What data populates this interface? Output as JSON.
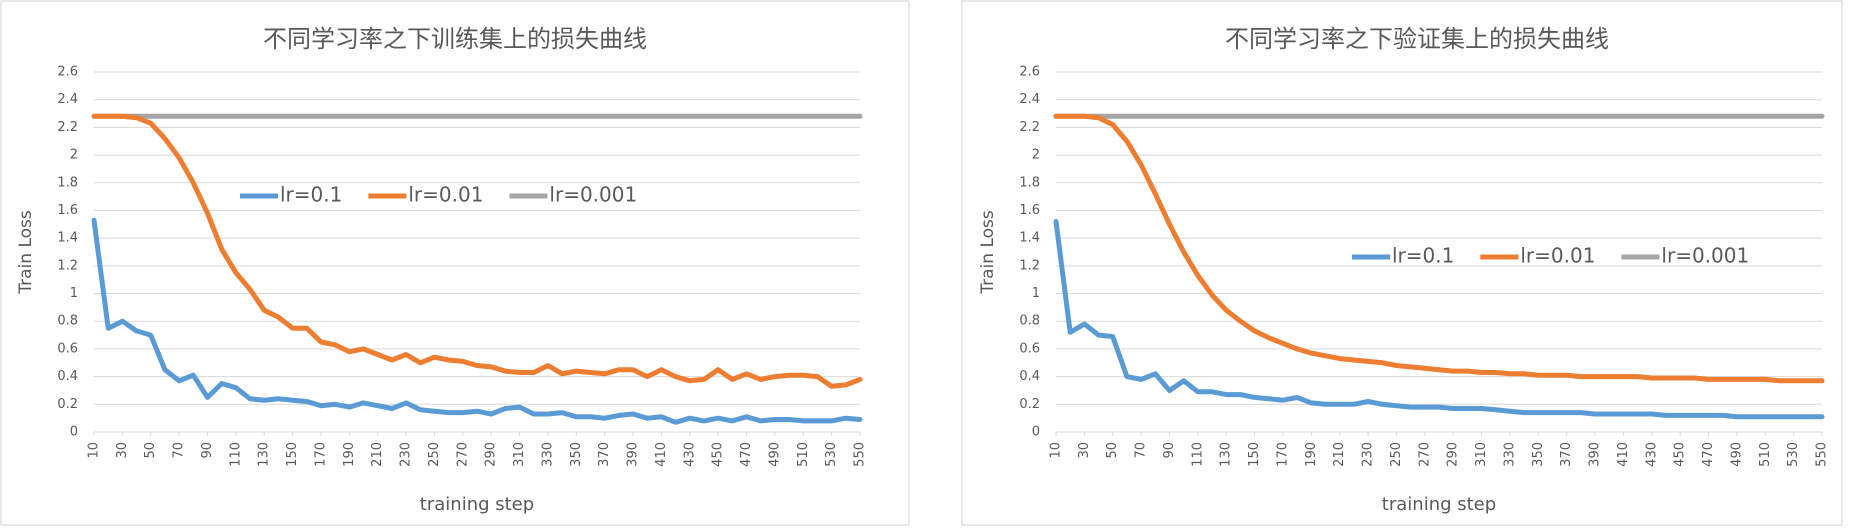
{
  "chart_data": [
    {
      "type": "line",
      "title": "不同学习率之下训练集上的损失曲线",
      "x_label": "training step",
      "y_label": "Train Loss",
      "x": [
        10,
        20,
        30,
        40,
        50,
        60,
        70,
        80,
        90,
        100,
        110,
        120,
        130,
        140,
        150,
        160,
        170,
        180,
        190,
        200,
        210,
        220,
        230,
        240,
        250,
        260,
        270,
        280,
        290,
        300,
        310,
        320,
        330,
        340,
        350,
        360,
        370,
        380,
        390,
        400,
        410,
        420,
        430,
        440,
        450,
        460,
        470,
        480,
        490,
        500,
        510,
        520,
        530,
        540,
        550
      ],
      "xlim": [
        10,
        550
      ],
      "xticks": [
        10,
        30,
        50,
        70,
        90,
        110,
        130,
        150,
        170,
        190,
        210,
        230,
        250,
        270,
        290,
        310,
        330,
        350,
        370,
        390,
        410,
        430,
        450,
        470,
        490,
        510,
        530,
        550
      ],
      "ylim": [
        0,
        2.6
      ],
      "yticks": [
        0,
        0.2,
        0.4,
        0.6,
        0.8,
        1,
        1.2,
        1.4,
        1.6,
        1.8,
        2,
        2.2,
        2.4,
        2.6
      ],
      "grid": true,
      "legend": "upper center",
      "series": [
        {
          "name": "lr=0.1",
          "color": "#5b9bd5",
          "values": [
            1.53,
            0.75,
            0.8,
            0.73,
            0.7,
            0.45,
            0.37,
            0.41,
            0.25,
            0.35,
            0.32,
            0.24,
            0.23,
            0.24,
            0.23,
            0.22,
            0.19,
            0.2,
            0.18,
            0.21,
            0.19,
            0.17,
            0.21,
            0.16,
            0.15,
            0.14,
            0.14,
            0.15,
            0.13,
            0.17,
            0.18,
            0.13,
            0.13,
            0.14,
            0.11,
            0.11,
            0.1,
            0.12,
            0.13,
            0.1,
            0.11,
            0.07,
            0.1,
            0.08,
            0.1,
            0.08,
            0.11,
            0.08,
            0.09,
            0.09,
            0.08,
            0.08,
            0.08,
            0.1,
            0.09
          ]
        },
        {
          "name": "lr=0.01",
          "color": "#ed7d31",
          "values": [
            2.28,
            2.28,
            2.28,
            2.27,
            2.23,
            2.12,
            1.98,
            1.8,
            1.58,
            1.32,
            1.15,
            1.03,
            0.88,
            0.83,
            0.75,
            0.75,
            0.65,
            0.63,
            0.58,
            0.6,
            0.56,
            0.52,
            0.56,
            0.5,
            0.54,
            0.52,
            0.51,
            0.48,
            0.47,
            0.44,
            0.43,
            0.43,
            0.48,
            0.42,
            0.44,
            0.43,
            0.42,
            0.45,
            0.45,
            0.4,
            0.45,
            0.4,
            0.37,
            0.38,
            0.45,
            0.38,
            0.42,
            0.38,
            0.4,
            0.41,
            0.41,
            0.4,
            0.33,
            0.34,
            0.38
          ]
        },
        {
          "name": "lr=0.001",
          "color": "#a5a5a5",
          "values": [
            2.28,
            2.28,
            2.28,
            2.28,
            2.28,
            2.28,
            2.28,
            2.28,
            2.28,
            2.28,
            2.28,
            2.28,
            2.28,
            2.28,
            2.28,
            2.28,
            2.28,
            2.28,
            2.28,
            2.28,
            2.28,
            2.28,
            2.28,
            2.28,
            2.28,
            2.28,
            2.28,
            2.28,
            2.28,
            2.28,
            2.28,
            2.28,
            2.28,
            2.28,
            2.28,
            2.28,
            2.28,
            2.28,
            2.28,
            2.28,
            2.28,
            2.28,
            2.28,
            2.28,
            2.28,
            2.28,
            2.28,
            2.28,
            2.28,
            2.28,
            2.28,
            2.28,
            2.28,
            2.28,
            2.28
          ]
        }
      ]
    },
    {
      "type": "line",
      "title": "不同学习率之下验证集上的损失曲线",
      "x_label": "training step",
      "y_label": "Train Loss",
      "x": [
        10,
        20,
        30,
        40,
        50,
        60,
        70,
        80,
        90,
        100,
        110,
        120,
        130,
        140,
        150,
        160,
        170,
        180,
        190,
        200,
        210,
        220,
        230,
        240,
        250,
        260,
        270,
        280,
        290,
        300,
        310,
        320,
        330,
        340,
        350,
        360,
        370,
        380,
        390,
        400,
        410,
        420,
        430,
        440,
        450,
        460,
        470,
        480,
        490,
        500,
        510,
        520,
        530,
        540,
        550
      ],
      "xlim": [
        10,
        550
      ],
      "xticks": [
        10,
        30,
        50,
        70,
        90,
        110,
        130,
        150,
        170,
        190,
        210,
        230,
        250,
        270,
        290,
        310,
        330,
        350,
        370,
        390,
        410,
        430,
        450,
        470,
        490,
        510,
        530,
        550
      ],
      "ylim": [
        0,
        2.6
      ],
      "yticks": [
        0,
        0.2,
        0.4,
        0.6,
        0.8,
        1,
        1.2,
        1.4,
        1.6,
        1.8,
        2,
        2.2,
        2.4,
        2.6
      ],
      "grid": true,
      "legend": "center right",
      "series": [
        {
          "name": "lr=0.1",
          "color": "#5b9bd5",
          "values": [
            1.52,
            0.72,
            0.78,
            0.7,
            0.69,
            0.4,
            0.38,
            0.42,
            0.3,
            0.37,
            0.29,
            0.29,
            0.27,
            0.27,
            0.25,
            0.24,
            0.23,
            0.25,
            0.21,
            0.2,
            0.2,
            0.2,
            0.22,
            0.2,
            0.19,
            0.18,
            0.18,
            0.18,
            0.17,
            0.17,
            0.17,
            0.16,
            0.15,
            0.14,
            0.14,
            0.14,
            0.14,
            0.14,
            0.13,
            0.13,
            0.13,
            0.13,
            0.13,
            0.12,
            0.12,
            0.12,
            0.12,
            0.12,
            0.11,
            0.11,
            0.11,
            0.11,
            0.11,
            0.11,
            0.11
          ]
        },
        {
          "name": "lr=0.01",
          "color": "#ed7d31",
          "values": [
            2.28,
            2.28,
            2.28,
            2.27,
            2.22,
            2.1,
            1.93,
            1.72,
            1.5,
            1.3,
            1.13,
            0.99,
            0.88,
            0.8,
            0.73,
            0.68,
            0.64,
            0.6,
            0.57,
            0.55,
            0.53,
            0.52,
            0.51,
            0.5,
            0.48,
            0.47,
            0.46,
            0.45,
            0.44,
            0.44,
            0.43,
            0.43,
            0.42,
            0.42,
            0.41,
            0.41,
            0.41,
            0.4,
            0.4,
            0.4,
            0.4,
            0.4,
            0.39,
            0.39,
            0.39,
            0.39,
            0.38,
            0.38,
            0.38,
            0.38,
            0.38,
            0.37,
            0.37,
            0.37,
            0.37
          ]
        },
        {
          "name": "lr=0.001",
          "color": "#a5a5a5",
          "values": [
            2.28,
            2.28,
            2.28,
            2.28,
            2.28,
            2.28,
            2.28,
            2.28,
            2.28,
            2.28,
            2.28,
            2.28,
            2.28,
            2.28,
            2.28,
            2.28,
            2.28,
            2.28,
            2.28,
            2.28,
            2.28,
            2.28,
            2.28,
            2.28,
            2.28,
            2.28,
            2.28,
            2.28,
            2.28,
            2.28,
            2.28,
            2.28,
            2.28,
            2.28,
            2.28,
            2.28,
            2.28,
            2.28,
            2.28,
            2.28,
            2.28,
            2.28,
            2.28,
            2.28,
            2.28,
            2.28,
            2.28,
            2.28,
            2.28,
            2.28,
            2.28,
            2.28,
            2.28,
            2.28,
            2.28
          ]
        }
      ]
    }
  ]
}
